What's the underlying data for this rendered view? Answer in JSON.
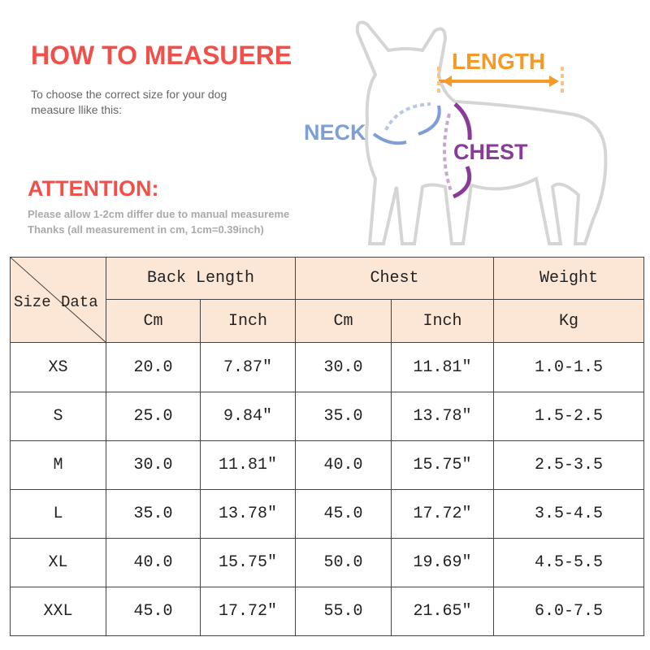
{
  "header": {
    "title": "HOW TO MEASUERE",
    "subtitle": [
      "To choose the correct size for your dog",
      "measure llike this:"
    ],
    "attention": {
      "title": "ATTENTION:",
      "notes": [
        "Please allow 1-2cm differ due to manual measureme",
        "Thanks (all measurement in cm, 1cm=0.39inch)"
      ]
    }
  },
  "diagram": {
    "length": "LENGTH",
    "neck": "NECK",
    "chest": "CHEST"
  },
  "table": {
    "corner": [
      "Size",
      "Data"
    ],
    "groups": [
      "Back Length",
      "Chest",
      "Weight"
    ],
    "units": [
      "Cm",
      "Inch",
      "Cm",
      "Inch",
      "Kg"
    ],
    "rows": [
      [
        "XS",
        "20.0",
        "7.87″",
        "30.0",
        "11.81″",
        "1.0-1.5"
      ],
      [
        "S",
        "25.0",
        "9.84″",
        "35.0",
        "13.78″",
        "1.5-2.5"
      ],
      [
        "M",
        "30.0",
        "11.81″",
        "40.0",
        "15.75″",
        "2.5-3.5"
      ],
      [
        "L",
        "35.0",
        "13.78″",
        "45.0",
        "17.72″",
        "3.5-4.5"
      ],
      [
        "XL",
        "40.0",
        "15.75″",
        "50.0",
        "19.69″",
        "4.5-5.5"
      ],
      [
        "XXL",
        "45.0",
        "17.72″",
        "55.0",
        "21.65″",
        "6.0-7.5"
      ]
    ]
  }
}
